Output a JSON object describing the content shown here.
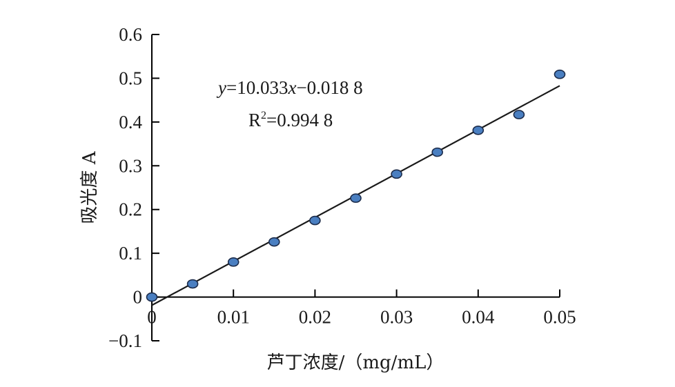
{
  "chart_data": {
    "type": "scatter",
    "xlabel": "芦丁浓度/（mg/mL）",
    "ylabel": "吸光度 A",
    "xlim": [
      0,
      0.05
    ],
    "ylim": [
      -0.1,
      0.6
    ],
    "x_ticks": [
      {
        "value": 0,
        "label": "0"
      },
      {
        "value": 0.01,
        "label": "0.01"
      },
      {
        "value": 0.02,
        "label": "0.02"
      },
      {
        "value": 0.03,
        "label": "0.03"
      },
      {
        "value": 0.04,
        "label": "0.04"
      },
      {
        "value": 0.05,
        "label": "0.05"
      }
    ],
    "y_ticks": [
      {
        "value": -0.1,
        "label": "−0.1"
      },
      {
        "value": 0,
        "label": "0"
      },
      {
        "value": 0.1,
        "label": "0.1"
      },
      {
        "value": 0.2,
        "label": "0.2"
      },
      {
        "value": 0.3,
        "label": "0.3"
      },
      {
        "value": 0.4,
        "label": "0.4"
      },
      {
        "value": 0.5,
        "label": "0.5"
      },
      {
        "value": 0.6,
        "label": "0.6"
      }
    ],
    "x": [
      0,
      0.005,
      0.01,
      0.015,
      0.02,
      0.025,
      0.03,
      0.035,
      0.04,
      0.045,
      0.05
    ],
    "y": [
      0,
      0.03,
      0.08,
      0.126,
      0.175,
      0.226,
      0.281,
      0.331,
      0.381,
      0.417,
      0.509
    ],
    "fit": {
      "slope": 10.033,
      "intercept": -0.0188
    },
    "equation": {
      "y_var": "y",
      "rhs_1": "=10.033",
      "x_var": "x",
      "rhs_2": "−0.018 8"
    },
    "r_squared": {
      "prefix": "R",
      "sup": "2",
      "value": "=0.994 8"
    },
    "grid": false,
    "colors": {
      "point_fill": "#4a7fc1",
      "point_stroke": "#1b2b4a",
      "line": "#1a1a1a"
    }
  }
}
